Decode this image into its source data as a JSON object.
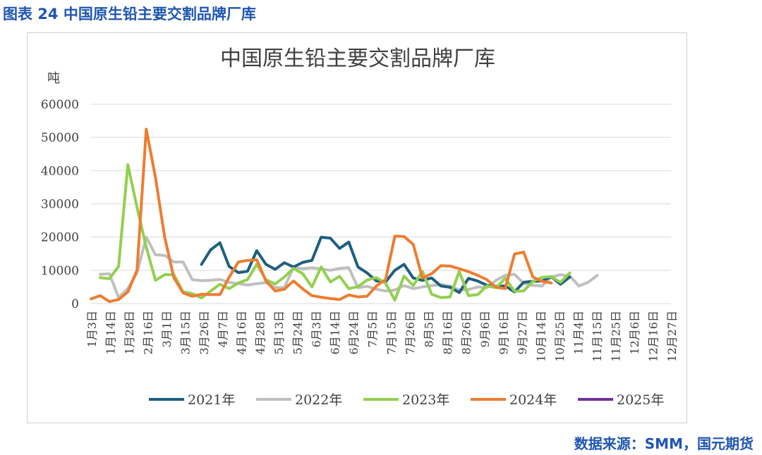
{
  "figure_title": "图表 24 中国原生铅主要交割品牌厂库",
  "source": "数据来源：SMM，国元期货",
  "chart_data": {
    "type": "line",
    "title": "中国原生铅主要交割品牌厂库",
    "ylabel": "吨",
    "ylim": [
      0,
      60000
    ],
    "yticks": [
      "0",
      "10000",
      "20000",
      "30000",
      "40000",
      "50000",
      "60000"
    ],
    "grid": true,
    "legend_position": "bottom",
    "x_labels": [
      "1月3日",
      "1月14日",
      "1月28日",
      "2月16日",
      "3月1日",
      "3月15日",
      "3月26日",
      "4月7日",
      "4月16日",
      "4月28日",
      "5月13日",
      "5月24日",
      "6月3日",
      "6月14日",
      "6月24日",
      "7月5日",
      "7月15日",
      "7月26日",
      "8月5日",
      "8月16日",
      "8月26日",
      "9月6日",
      "9月16日",
      "9月27日",
      "10月14日",
      "10月25日",
      "11月4日",
      "11月15日",
      "11月25日",
      "12月6日",
      "12月16日",
      "12月27日"
    ],
    "x_count": 64,
    "series": [
      {
        "name": "2021年",
        "color": "#1f5f7f",
        "values": [
          null,
          null,
          null,
          null,
          null,
          null,
          null,
          null,
          null,
          null,
          null,
          null,
          11800,
          16200,
          18300,
          11200,
          9300,
          9700,
          15900,
          11800,
          10300,
          12300,
          11000,
          12400,
          13000,
          20000,
          19700,
          16600,
          18500,
          11000,
          9200,
          6800,
          6500,
          10000,
          11800,
          7700,
          7000,
          7700,
          5300,
          4900,
          3300,
          7600,
          6800,
          5500,
          5200,
          5300,
          3500,
          6400,
          6700,
          6800,
          8100,
          5800,
          8000
        ]
      },
      {
        "name": "2022年",
        "color": "#bfbfbf",
        "values": [
          null,
          8800,
          9000,
          1800,
          4500,
          9300,
          20000,
          14700,
          14500,
          12500,
          12500,
          7200,
          6900,
          7000,
          7300,
          6400,
          6000,
          5600,
          6000,
          6300,
          4800,
          4800,
          10900,
          10500,
          10800,
          10400,
          10000,
          10600,
          10800,
          4800,
          5200,
          4300,
          3800,
          4100,
          5400,
          4500,
          5000,
          5400,
          5700,
          5300,
          4100,
          4200,
          5000,
          4800,
          7000,
          8500,
          8800,
          6100,
          5500,
          5300,
          8000,
          8700,
          8300,
          5300,
          6400,
          8500
        ]
      },
      {
        "name": "2023年",
        "color": "#92d050",
        "values": [
          null,
          7800,
          7500,
          11200,
          41800,
          29000,
          17000,
          7000,
          8700,
          8700,
          3500,
          3000,
          1700,
          3800,
          5800,
          4500,
          6200,
          7200,
          11800,
          7200,
          5900,
          8000,
          10600,
          9000,
          5000,
          11000,
          6500,
          8200,
          4500,
          5100,
          7100,
          7800,
          6100,
          1000,
          8300,
          5400,
          9700,
          2800,
          1800,
          2000,
          9700,
          2400,
          2700,
          5300,
          4800,
          7600,
          3700,
          3800,
          6700,
          7900,
          8100,
          6400,
          9200
        ]
      },
      {
        "name": "2024年",
        "color": "#ed7d31",
        "values": [
          1400,
          2400,
          600,
          1200,
          3500,
          10000,
          52500,
          38000,
          20000,
          7800,
          3200,
          2200,
          2800,
          2700,
          2700,
          7900,
          12500,
          13000,
          13200,
          6800,
          3800,
          4300,
          6800,
          4400,
          2400,
          1900,
          1500,
          1200,
          2600,
          2000,
          2200,
          5300,
          7200,
          20300,
          20200,
          17800,
          7700,
          9000,
          11400,
          11300,
          10500,
          9600,
          8500,
          7200,
          4900,
          4500,
          14900,
          15500,
          8000,
          6700,
          6200
        ]
      },
      {
        "name": "2025年",
        "color": "#7030a0",
        "values": []
      }
    ]
  }
}
